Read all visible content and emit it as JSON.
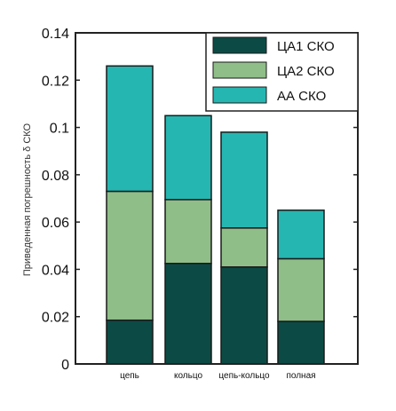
{
  "chart_data": {
    "type": "bar",
    "stacked": true,
    "categories": [
      "цепь",
      "кольцо",
      "цепь-кольцо",
      "полная"
    ],
    "series": [
      {
        "name": "ЦА1 СКО",
        "color": "#0c4b45",
        "values": [
          0.0185,
          0.0425,
          0.041,
          0.018
        ]
      },
      {
        "name": "ЦА2 СКО",
        "color": "#8fbe88",
        "values": [
          0.0545,
          0.027,
          0.0165,
          0.0265
        ]
      },
      {
        "name": "АА СКО",
        "color": "#26b6b1",
        "values": [
          0.053,
          0.0355,
          0.0405,
          0.0205
        ]
      }
    ],
    "title": "",
    "xlabel": "",
    "ylabel": "Приведенная погрешность δ СКО",
    "ylim": [
      0,
      0.14
    ],
    "yticks": [
      "0",
      "0.02",
      "0.04",
      "0.06",
      "0.08",
      "0.1",
      "0.12",
      "0.14"
    ],
    "legend_position": "top-right",
    "grid": false
  }
}
